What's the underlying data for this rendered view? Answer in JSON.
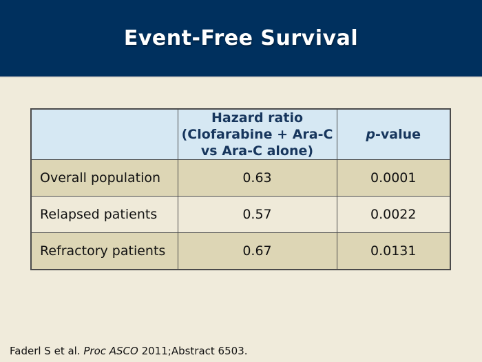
{
  "slide": {
    "title": "Event-Free Survival",
    "footer": {
      "prefix": "Faderl S et al. ",
      "italic": "Proc ASCO",
      "suffix": " 2011;Abstract 6503."
    }
  },
  "table": {
    "header": {
      "row_label_col": "",
      "hazard_ratio_col": "Hazard ratio\n(Clofarabine + Ara-C\nvs Ara-C alone)",
      "p_value_col_italic": "p",
      "p_value_col_rest": "-value"
    },
    "rows": [
      {
        "label": "Overall population",
        "hazard_ratio": "0.63",
        "p_value": "0.0001"
      },
      {
        "label": "Relapsed patients",
        "hazard_ratio": "0.57",
        "p_value": "0.0022"
      },
      {
        "label": "Refractory patients",
        "hazard_ratio": "0.67",
        "p_value": "0.0131"
      }
    ]
  },
  "colors": {
    "header_band": "#00305E",
    "band_divider": "#6B7D92",
    "slide_bg": "#F0EBDB",
    "table_header_bg": "#D6E8F3",
    "row_dark_bg": "#DDD6B5",
    "row_light_bg": "#EFEAD9",
    "table_border": "#4A4A4A",
    "header_text": "#17365D",
    "title_text": "#FFFFFF",
    "body_text": "#111111"
  }
}
